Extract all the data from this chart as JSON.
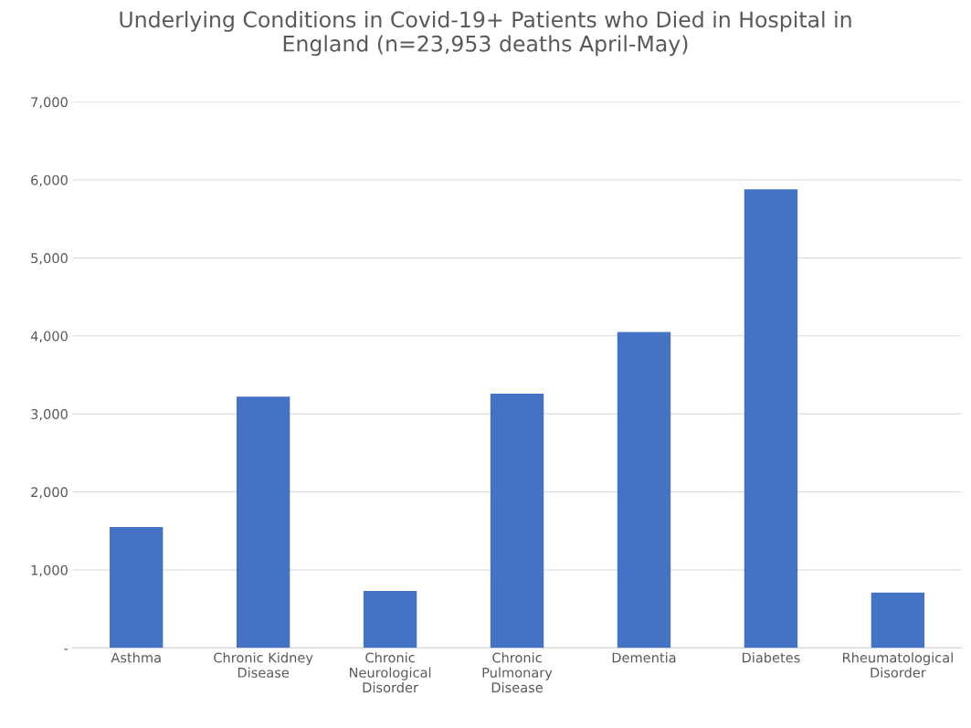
{
  "chart_data": {
    "type": "bar",
    "title": "Underlying Conditions in Covid-19+ Patients who Died in Hospital in\nEngland (n=23,953 deaths April-May)",
    "categories": [
      "Asthma",
      "Chronic Kidney\nDisease",
      "Chronic\nNeurological\nDisorder",
      "Chronic\nPulmonary\nDisease",
      "Dementia",
      "Diabetes",
      "Rheumatological\nDisorder"
    ],
    "values": [
      1550,
      3220,
      730,
      3260,
      4050,
      5880,
      710
    ],
    "color": "#4472c4",
    "ylim": [
      0,
      7000
    ],
    "yticks": [
      {
        "value": 0,
        "label": "-"
      },
      {
        "value": 1000,
        "label": "1,000"
      },
      {
        "value": 2000,
        "label": "2,000"
      },
      {
        "value": 3000,
        "label": "3,000"
      },
      {
        "value": 4000,
        "label": "4,000"
      },
      {
        "value": 5000,
        "label": "5,000"
      },
      {
        "value": 6000,
        "label": "6,000"
      },
      {
        "value": 7000,
        "label": "7,000"
      }
    ],
    "grid": "y",
    "legend": false
  }
}
